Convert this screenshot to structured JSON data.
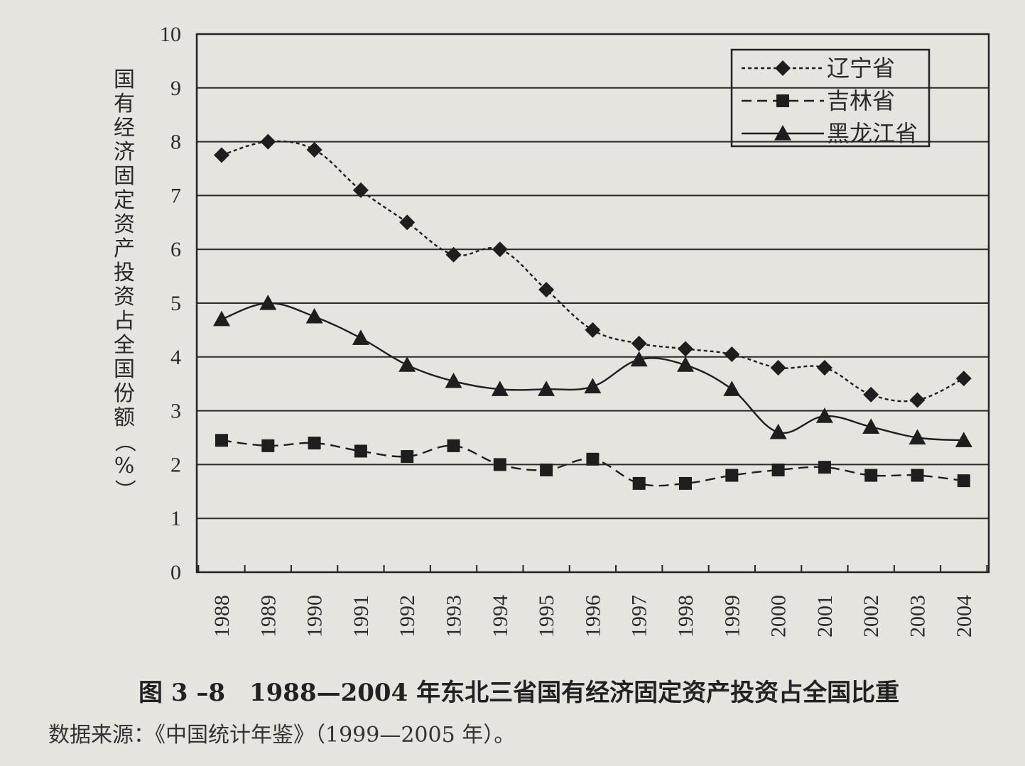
{
  "figure": {
    "caption": "图 3 –8　1988—2004 年东北三省国有经济固定资产投资占全国比重",
    "source": "数据来源：《中国统计年鉴》（1999—2005 年）。"
  },
  "chart_data": {
    "type": "line",
    "title": "",
    "xlabel": "",
    "ylabel": "国有经济固定资产投资占全国份额（%）",
    "categories": [
      "1988",
      "1989",
      "1990",
      "1991",
      "1992",
      "1993",
      "1994",
      "1995",
      "1996",
      "1997",
      "1998",
      "1999",
      "2000",
      "2001",
      "2002",
      "2003",
      "2004"
    ],
    "ylim": [
      0,
      10
    ],
    "yticks": [
      "0",
      "1",
      "2",
      "3",
      "4",
      "5",
      "6",
      "7",
      "8",
      "9",
      "10"
    ],
    "grid": "horizontal",
    "legend": "top-right",
    "series": [
      {
        "name": "辽宁省",
        "marker": "diamond",
        "line_style": "dotted",
        "values": [
          7.75,
          8.0,
          7.85,
          7.1,
          6.5,
          5.9,
          6.0,
          5.25,
          4.5,
          4.25,
          4.15,
          4.05,
          3.8,
          3.8,
          3.3,
          3.2,
          3.6
        ]
      },
      {
        "name": "吉林省",
        "marker": "square",
        "line_style": "dashed",
        "values": [
          2.45,
          2.35,
          2.4,
          2.25,
          2.15,
          2.35,
          2.0,
          1.9,
          2.1,
          1.65,
          1.65,
          1.8,
          1.9,
          1.95,
          1.8,
          1.8,
          1.7
        ]
      },
      {
        "name": "黑龙江省",
        "marker": "triangle",
        "line_style": "solid",
        "values": [
          4.7,
          5.0,
          4.75,
          4.35,
          3.85,
          3.55,
          3.4,
          3.4,
          3.45,
          3.95,
          3.85,
          3.4,
          2.6,
          2.9,
          2.7,
          2.5,
          2.45
        ]
      }
    ]
  }
}
